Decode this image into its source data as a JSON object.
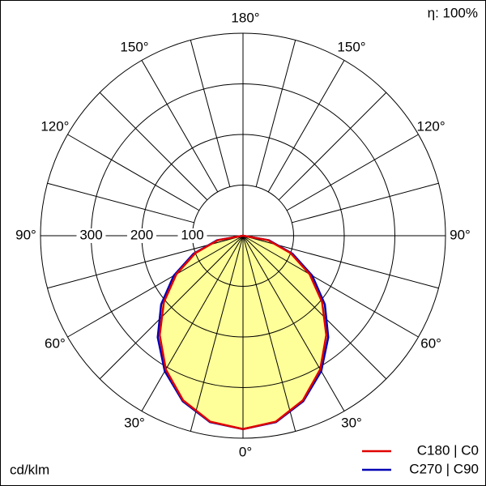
{
  "chart_data": {
    "type": "polar",
    "title": "η: 100%",
    "unit_label": "cd/klm",
    "angles": [
      0,
      10,
      20,
      30,
      40,
      50,
      60,
      70,
      80,
      90
    ],
    "series": [
      {
        "name": "C180 | C0",
        "color": "#e00000",
        "values": [
          382,
          373,
          346,
          305,
          256,
          204,
          152,
          100,
          50,
          0
        ]
      },
      {
        "name": "C270 | C90",
        "color": "#0000b4",
        "values": [
          382,
          374,
          348,
          309,
          262,
          211,
          158,
          104,
          52,
          0
        ]
      }
    ],
    "fill_color": "#ffff99",
    "rlim": [
      0,
      400
    ],
    "rticks": [
      100,
      200,
      300
    ],
    "angle_ticks": [
      {
        "value": 0,
        "label": "0°"
      },
      {
        "value": 30,
        "label": "30°"
      },
      {
        "value": 60,
        "label": "60°"
      },
      {
        "value": 90,
        "label": "90°"
      },
      {
        "value": 120,
        "label": "120°"
      },
      {
        "value": 150,
        "label": "150°"
      },
      {
        "value": 180,
        "label": "180°"
      }
    ]
  }
}
